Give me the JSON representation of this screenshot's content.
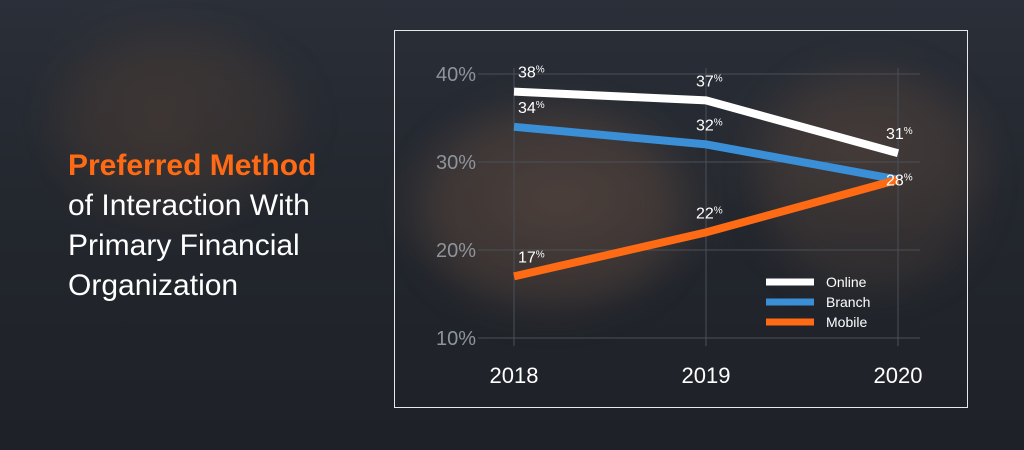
{
  "headline": {
    "accent": "Preferred Method",
    "rest_line1": "of Interaction With",
    "rest_line2": "Primary Financial",
    "rest_line3": "Organization"
  },
  "colors": {
    "accent": "#ff6a14",
    "online": "#ffffff",
    "branch": "#3a8fd6",
    "mobile": "#ff6a14"
  },
  "chart_data": {
    "type": "line",
    "x": [
      "2018",
      "2019",
      "2020"
    ],
    "yticks": [
      "40%",
      "30%",
      "20%",
      "10%"
    ],
    "ytick_values": [
      40,
      30,
      20,
      10
    ],
    "ylim": [
      10,
      40
    ],
    "grid": true,
    "legend_position": "bottom-right",
    "series": [
      {
        "name": "Online",
        "values": [
          38,
          37,
          31
        ],
        "labels": [
          "38",
          "37",
          "31"
        ],
        "color": "#ffffff"
      },
      {
        "name": "Branch",
        "values": [
          34,
          32,
          28
        ],
        "labels": [
          "34",
          "32",
          "28"
        ],
        "color": "#3a8fd6"
      },
      {
        "name": "Mobile",
        "values": [
          17,
          22,
          28
        ],
        "labels": [
          "17",
          "22",
          ""
        ],
        "color": "#ff6a14"
      }
    ]
  }
}
